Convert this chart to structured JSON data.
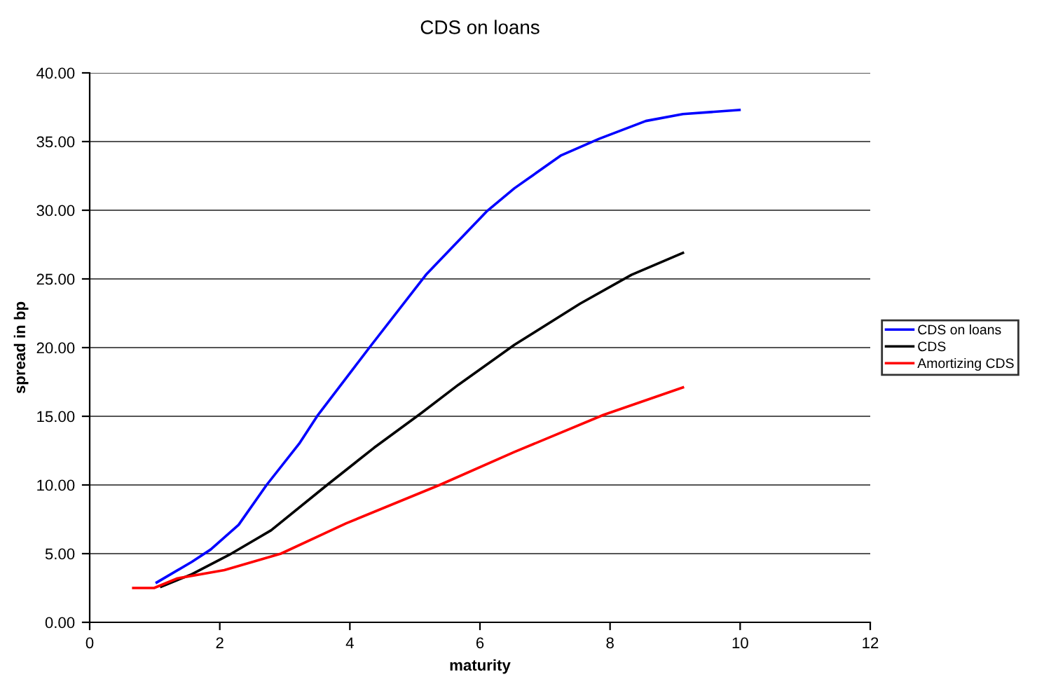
{
  "chart_data": {
    "type": "line",
    "title": "CDS on loans",
    "xlabel": "maturity",
    "ylabel": "spread in bp",
    "xlim": [
      0,
      12
    ],
    "xticks": [
      0,
      2,
      4,
      6,
      8,
      10,
      12
    ],
    "ylim": [
      0,
      40
    ],
    "yticks": [
      {
        "value": 0,
        "label": "0.00"
      },
      {
        "value": 5,
        "label": "5.00"
      },
      {
        "value": 10,
        "label": "10.00"
      },
      {
        "value": 15,
        "label": "15.00"
      },
      {
        "value": 20,
        "label": "20.00"
      },
      {
        "value": 25,
        "label": "25.00"
      },
      {
        "value": 30,
        "label": "30.00"
      },
      {
        "value": 35,
        "label": "35.00"
      },
      {
        "value": 40,
        "label": "40.00"
      }
    ],
    "grid": "y",
    "legend": "right",
    "marker": "none",
    "line_style": "solid",
    "series": [
      {
        "name": "CDS on loans",
        "color": "#0000ff",
        "x": [
          1.03,
          1.57,
          1.86,
          2.29,
          2.72,
          3.22,
          3.51,
          4.3,
          5.17,
          6.1,
          6.53,
          7.25,
          7.83,
          8.55,
          9.12,
          9.99
        ],
        "values": [
          2.9,
          4.4,
          5.3,
          7.1,
          10.0,
          13.0,
          15.1,
          20.0,
          25.3,
          29.9,
          31.6,
          34.0,
          35.2,
          36.5,
          37.0,
          37.3
        ]
      },
      {
        "name": "CDS",
        "color": "#000000",
        "x": [
          1.1,
          1.57,
          2.14,
          2.79,
          3.65,
          4.37,
          5.09,
          5.67,
          6.53,
          7.54,
          8.33,
          9.12
        ],
        "values": [
          2.6,
          3.5,
          4.9,
          6.7,
          10.0,
          12.7,
          15.2,
          17.3,
          20.2,
          23.2,
          25.3,
          26.9
        ]
      },
      {
        "name": "Amortizing CDS",
        "color": "#ff0000",
        "x": [
          0.67,
          0.99,
          1.35,
          2.07,
          2.94,
          3.94,
          5.38,
          6.53,
          7.9,
          9.12
        ],
        "values": [
          2.5,
          2.5,
          3.2,
          3.8,
          5.0,
          7.2,
          10.0,
          12.4,
          15.1,
          17.1
        ]
      }
    ]
  }
}
